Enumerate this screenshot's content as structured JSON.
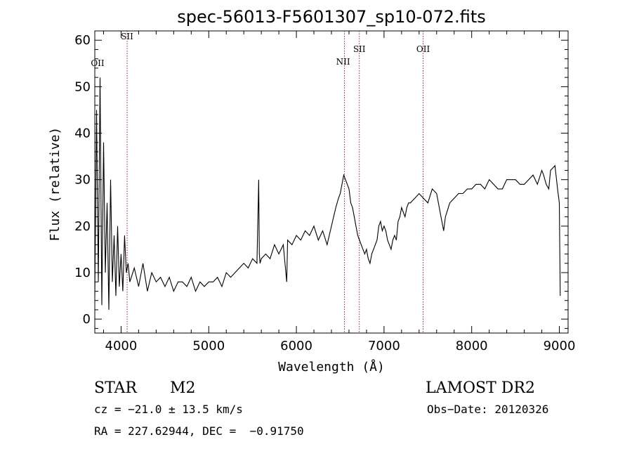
{
  "chart_data": {
    "type": "line",
    "title": "spec-56013-F5601307_sp10-072.fits",
    "xlabel": "Wavelength (Å)",
    "ylabel": "Flux (relative)",
    "xlim": [
      3700,
      9100
    ],
    "ylim": [
      -3,
      62
    ],
    "xticks": [
      4000,
      5000,
      6000,
      7000,
      8000,
      9000
    ],
    "yticks": [
      0,
      10,
      20,
      30,
      40,
      50,
      60
    ],
    "grid": false,
    "series": [
      {
        "color": "#000000",
        "x": [
          3700,
          3720,
          3740,
          3760,
          3780,
          3800,
          3820,
          3840,
          3860,
          3880,
          3900,
          3920,
          3940,
          3960,
          3980,
          4000,
          4020,
          4040,
          4060,
          4080,
          4100,
          4150,
          4200,
          4250,
          4300,
          4350,
          4400,
          4450,
          4500,
          4550,
          4600,
          4650,
          4700,
          4750,
          4800,
          4850,
          4900,
          4950,
          5000,
          5050,
          5100,
          5150,
          5200,
          5250,
          5300,
          5350,
          5400,
          5450,
          5500,
          5550,
          5570,
          5577,
          5585,
          5600,
          5650,
          5700,
          5750,
          5800,
          5850,
          5890,
          5900,
          5950,
          6000,
          6050,
          6100,
          6150,
          6200,
          6250,
          6300,
          6350,
          6400,
          6450,
          6480,
          6500,
          6520,
          6540,
          6560,
          6580,
          6600,
          6620,
          6640,
          6660,
          6680,
          6700,
          6720,
          6740,
          6760,
          6780,
          6800,
          6820,
          6840,
          6860,
          6880,
          6900,
          6920,
          6940,
          6960,
          6980,
          7000,
          7020,
          7040,
          7060,
          7080,
          7100,
          7120,
          7140,
          7160,
          7180,
          7200,
          7220,
          7240,
          7260,
          7280,
          7300,
          7350,
          7400,
          7450,
          7500,
          7550,
          7600,
          7620,
          7650,
          7680,
          7700,
          7750,
          7800,
          7850,
          7900,
          7950,
          8000,
          8050,
          8100,
          8150,
          8200,
          8250,
          8300,
          8350,
          8400,
          8450,
          8500,
          8550,
          8600,
          8650,
          8700,
          8750,
          8800,
          8820,
          8850,
          8880,
          8900,
          8950,
          8980,
          9000,
          9010
        ],
        "y": [
          5,
          45,
          8,
          52,
          3,
          38,
          10,
          25,
          2,
          30,
          8,
          18,
          5,
          20,
          7,
          14,
          6,
          18,
          10,
          12,
          8,
          11,
          7,
          12,
          6,
          10,
          8,
          9,
          7,
          9,
          6,
          8,
          8,
          7,
          9,
          6,
          8,
          7,
          8,
          8,
          9,
          7,
          10,
          9,
          10,
          11,
          12,
          11,
          13,
          12,
          30,
          14,
          12,
          13,
          14,
          13,
          16,
          14,
          16,
          8,
          17,
          16,
          18,
          17,
          19,
          18,
          20,
          17,
          19,
          16,
          20,
          24,
          26,
          27,
          29,
          31,
          30,
          29,
          28,
          25,
          24,
          22,
          20,
          18,
          17,
          16,
          15,
          14,
          15,
          13,
          12,
          14,
          15,
          16,
          17,
          20,
          21,
          19,
          20,
          19,
          17,
          16,
          15,
          17,
          18,
          17,
          21,
          22,
          24,
          23,
          22,
          24,
          25,
          25,
          26,
          27,
          26,
          25,
          28,
          27,
          25,
          22,
          19,
          22,
          25,
          26,
          27,
          27,
          28,
          28,
          29,
          29,
          28,
          30,
          29,
          28,
          28,
          30,
          30,
          30,
          29,
          29,
          30,
          31,
          29,
          32,
          31,
          29,
          28,
          32,
          33,
          28,
          25,
          5
        ]
      }
    ],
    "lines": [
      {
        "x": 4069,
        "label": "SII"
      },
      {
        "x": 6549,
        "label": "NII"
      },
      {
        "x": 6718,
        "label": "SII"
      },
      {
        "x": 7446,
        "label": "OII"
      }
    ],
    "edge_label": "OII"
  },
  "info": {
    "object_class": "STAR",
    "subclass": "M2",
    "survey": "LAMOST DR2",
    "velocity": "cz = −21.0 ± 13.5 km/s",
    "obs_date": "Obs−Date: 20120326",
    "coords": "RA = 227.62944, DEC =  −0.91750"
  }
}
